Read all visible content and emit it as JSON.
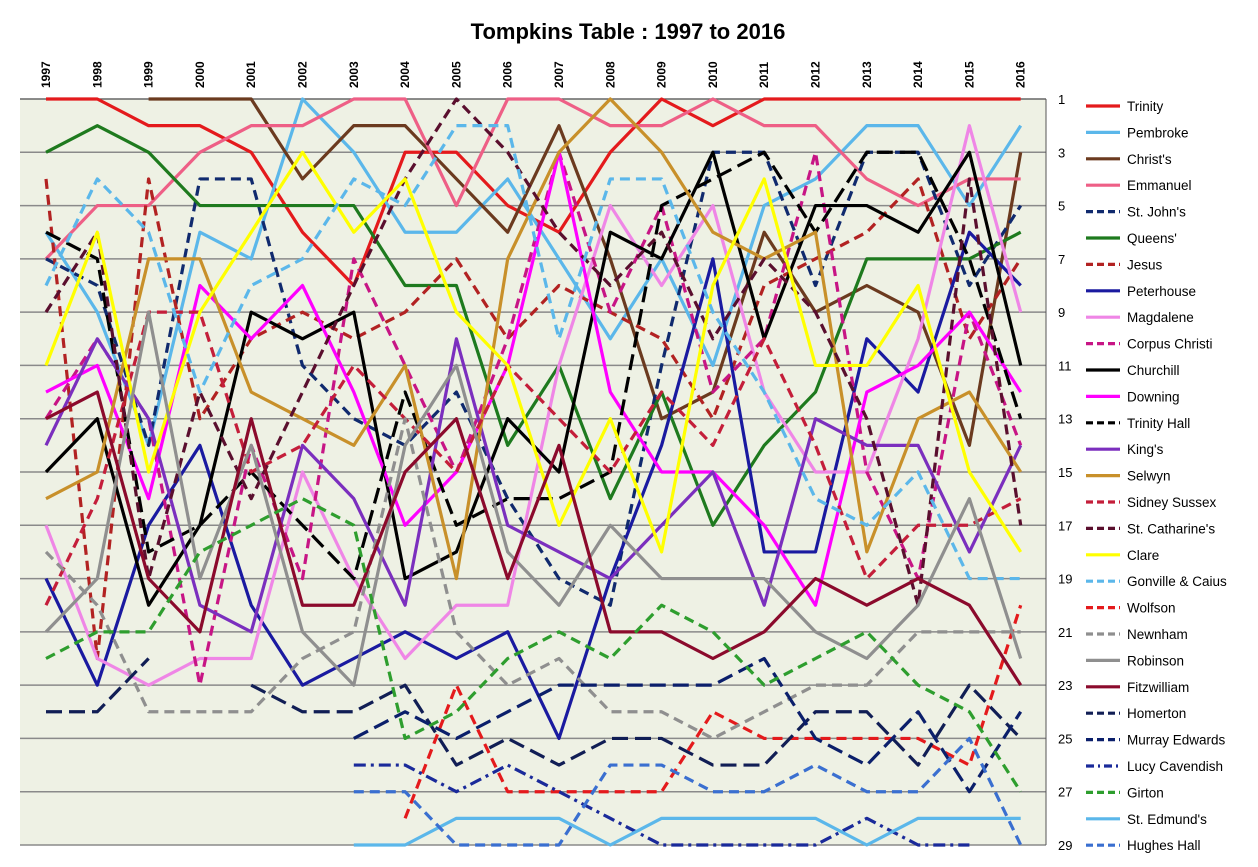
{
  "chart_data": {
    "type": "line",
    "title": "Tompkins Table : 1997 to 2016",
    "xlabel": "",
    "ylabel": "",
    "x": [
      "1997",
      "1998",
      "1999",
      "2000",
      "2001",
      "2002",
      "2003",
      "2004",
      "2005",
      "2006",
      "2007",
      "2008",
      "2009",
      "2010",
      "2011",
      "2012",
      "2013",
      "2014",
      "2015",
      "2016"
    ],
    "ylim": [
      1,
      29
    ],
    "y_reversed": true,
    "yticks": [
      1,
      3,
      5,
      7,
      9,
      11,
      13,
      15,
      17,
      19,
      21,
      23,
      25,
      27,
      29
    ],
    "grid": true,
    "legend_position": "right",
    "plot_background": "#eef1e4",
    "series": [
      {
        "name": "Trinity",
        "color": "#e41a1c",
        "dash": "solid",
        "values": [
          1,
          1,
          2,
          2,
          3,
          6,
          8,
          3,
          3,
          5,
          6,
          3,
          1,
          2,
          1,
          1,
          1,
          1,
          1,
          1
        ]
      },
      {
        "name": "Pembroke",
        "color": "#5bb7ea",
        "dash": "solid",
        "values": [
          6,
          9,
          14,
          6,
          7,
          1,
          3,
          6,
          6,
          4,
          7,
          10,
          7,
          11,
          5,
          4,
          2,
          2,
          5,
          2
        ]
      },
      {
        "name": "Christ's",
        "color": "#6b3a1f",
        "dash": "solid",
        "values": [
          null,
          null,
          1,
          1,
          1,
          4,
          2,
          2,
          4,
          6,
          2,
          7,
          13,
          12,
          6,
          9,
          8,
          9,
          14,
          3
        ]
      },
      {
        "name": "Emmanuel",
        "color": "#ee5f86",
        "dash": "solid",
        "values": [
          7,
          5,
          5,
          3,
          2,
          2,
          1,
          1,
          5,
          1,
          1,
          2,
          2,
          1,
          2,
          2,
          4,
          5,
          4,
          4
        ]
      },
      {
        "name": "St. John's",
        "color": "#102a6e",
        "dash": "dash",
        "values": [
          7,
          8,
          14,
          4,
          4,
          11,
          13,
          14,
          12,
          16,
          19,
          20,
          11,
          3,
          3,
          8,
          3,
          3,
          8,
          5
        ]
      },
      {
        "name": "Queens'",
        "color": "#1e7a1e",
        "dash": "solid",
        "values": [
          3,
          2,
          3,
          5,
          5,
          5,
          5,
          8,
          8,
          14,
          11,
          16,
          12,
          17,
          14,
          12,
          7,
          7,
          7,
          6
        ]
      },
      {
        "name": "Jesus",
        "color": "#b22222",
        "dash": "dash",
        "values": [
          4,
          22,
          4,
          13,
          10,
          9,
          10,
          9,
          7,
          10,
          8,
          9,
          10,
          13,
          8,
          7,
          6,
          4,
          10,
          7
        ]
      },
      {
        "name": "Peterhouse",
        "color": "#1a1aa0",
        "dash": "solid",
        "values": [
          19,
          23,
          17,
          14,
          20,
          23,
          22,
          21,
          22,
          21,
          25,
          19,
          14,
          7,
          18,
          18,
          10,
          12,
          6,
          8
        ]
      },
      {
        "name": "Magdalene",
        "color": "#ef86e6",
        "dash": "solid",
        "values": [
          17,
          22,
          23,
          22,
          22,
          15,
          19,
          22,
          20,
          20,
          11,
          5,
          8,
          5,
          12,
          15,
          15,
          10,
          2,
          9
        ]
      },
      {
        "name": "Corpus Christi",
        "color": "#c71585",
        "dash": "dash",
        "values": [
          13,
          10,
          13,
          23,
          14,
          19,
          7,
          11,
          15,
          10,
          3,
          9,
          5,
          12,
          10,
          3,
          15,
          19,
          9,
          14
        ]
      },
      {
        "name": "Churchill",
        "color": "#000000",
        "dash": "solid",
        "values": [
          15,
          13,
          20,
          17,
          9,
          10,
          9,
          19,
          18,
          13,
          15,
          6,
          7,
          3,
          10,
          5,
          5,
          6,
          3,
          11
        ]
      },
      {
        "name": "Downing",
        "color": "#ff00ff",
        "dash": "solid",
        "values": [
          12,
          11,
          16,
          8,
          10,
          8,
          12,
          17,
          15,
          11,
          3,
          12,
          15,
          15,
          17,
          20,
          12,
          11,
          9,
          12
        ]
      },
      {
        "name": "Trinity Hall",
        "color": "#000000",
        "dash": "longdash",
        "values": [
          6,
          7,
          18,
          17,
          15,
          17,
          19,
          12,
          17,
          16,
          16,
          15,
          5,
          4,
          3,
          6,
          3,
          3,
          7,
          13
        ]
      },
      {
        "name": "King's",
        "color": "#7b2fbe",
        "dash": "solid",
        "values": [
          14,
          10,
          13,
          20,
          21,
          14,
          16,
          20,
          10,
          17,
          18,
          19,
          17,
          15,
          20,
          13,
          14,
          14,
          18,
          14
        ]
      },
      {
        "name": "Selwyn",
        "color": "#c8902a",
        "dash": "solid",
        "values": [
          16,
          15,
          7,
          7,
          12,
          13,
          14,
          11,
          19,
          7,
          3,
          1,
          3,
          6,
          7,
          6,
          18,
          13,
          12,
          15
        ]
      },
      {
        "name": "Sidney Sussex",
        "color": "#c41e3a",
        "dash": "dash",
        "values": [
          20,
          16,
          9,
          9,
          15,
          14,
          11,
          13,
          15,
          11,
          13,
          15,
          12,
          14,
          10,
          14,
          19,
          17,
          17,
          16
        ]
      },
      {
        "name": "St. Catharine's",
        "color": "#5a0f2e",
        "dash": "dash",
        "values": [
          9,
          6,
          19,
          12,
          16,
          12,
          8,
          4,
          1,
          3,
          6,
          8,
          6,
          10,
          7,
          9,
          13,
          20,
          4,
          17
        ]
      },
      {
        "name": "Clare",
        "color": "#ffff00",
        "dash": "solid",
        "values": [
          11,
          6,
          15,
          9,
          6,
          3,
          6,
          4,
          9,
          11,
          17,
          13,
          18,
          8,
          4,
          11,
          11,
          8,
          15,
          18
        ]
      },
      {
        "name": "Gonville & Caius",
        "color": "#5bb7ea",
        "dash": "dash",
        "values": [
          8,
          4,
          6,
          12,
          8,
          7,
          4,
          5,
          2,
          2,
          10,
          4,
          4,
          9,
          12,
          16,
          17,
          15,
          19,
          19
        ]
      },
      {
        "name": "Wolfson",
        "color": "#e41a1c",
        "dash": "dash",
        "values": [
          null,
          null,
          null,
          null,
          null,
          null,
          null,
          28,
          23,
          27,
          27,
          27,
          27,
          24,
          25,
          25,
          25,
          25,
          26,
          20
        ]
      },
      {
        "name": "Newnham",
        "color": "#8f8f8f",
        "dash": "dash",
        "values": [
          18,
          20,
          24,
          24,
          24,
          22,
          21,
          13,
          21,
          23,
          22,
          24,
          24,
          25,
          24,
          23,
          23,
          21,
          21,
          21
        ]
      },
      {
        "name": "Robinson",
        "color": "#8f8f8f",
        "dash": "solid",
        "values": [
          21,
          19,
          9,
          19,
          14,
          21,
          23,
          14,
          11,
          18,
          20,
          17,
          19,
          19,
          19,
          21,
          22,
          20,
          16,
          22
        ]
      },
      {
        "name": "Fitzwilliam",
        "color": "#8b0a2c",
        "dash": "solid",
        "values": [
          13,
          12,
          19,
          21,
          13,
          20,
          20,
          15,
          13,
          19,
          14,
          21,
          21,
          22,
          21,
          19,
          20,
          19,
          20,
          23
        ]
      },
      {
        "name": "Homerton",
        "color": "#111e55",
        "dash": "longdash",
        "values": [
          24,
          24,
          22,
          null,
          23,
          24,
          24,
          23,
          26,
          25,
          26,
          25,
          25,
          26,
          26,
          24,
          24,
          26,
          23,
          25
        ]
      },
      {
        "name": "Murray Edwards",
        "color": "#0b1f6b",
        "dash": "longdash",
        "values": [
          null,
          null,
          null,
          null,
          null,
          null,
          25,
          24,
          25,
          24,
          23,
          23,
          23,
          23,
          22,
          25,
          26,
          24,
          27,
          24
        ]
      },
      {
        "name": "Lucy Cavendish",
        "color": "#1a2a9a",
        "dash": "dashdot",
        "values": [
          null,
          null,
          null,
          null,
          null,
          null,
          26,
          26,
          27,
          26,
          27,
          28,
          29,
          29,
          29,
          29,
          28,
          29,
          29,
          null
        ]
      },
      {
        "name": "Girton",
        "color": "#2e9e2e",
        "dash": "dash",
        "values": [
          22,
          21,
          21,
          18,
          17,
          16,
          17,
          25,
          24,
          22,
          21,
          22,
          20,
          21,
          23,
          22,
          21,
          23,
          24,
          27
        ]
      },
      {
        "name": "St. Edmund's",
        "color": "#5bb7ea",
        "dash": "solid",
        "values": [
          null,
          null,
          null,
          null,
          null,
          null,
          29,
          29,
          28,
          28,
          28,
          29,
          28,
          28,
          28,
          28,
          29,
          28,
          28,
          28
        ]
      },
      {
        "name": "Hughes Hall",
        "color": "#3a6fd0",
        "dash": "dash",
        "values": [
          null,
          null,
          null,
          null,
          null,
          null,
          27,
          27,
          29,
          29,
          29,
          26,
          26,
          27,
          27,
          26,
          27,
          27,
          25,
          29
        ]
      }
    ]
  }
}
